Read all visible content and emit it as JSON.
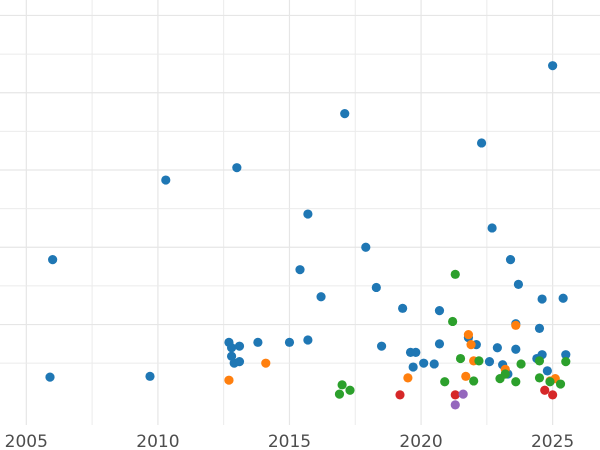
{
  "chart_data": {
    "type": "scatter",
    "title": "",
    "xlabel": "",
    "ylabel": "",
    "xlim": [
      2004.0,
      2026.8
    ],
    "ylim": [
      -0.3,
      5.2
    ],
    "grid": true,
    "legend": "none",
    "x_ticks": [
      {
        "value": 2005,
        "label": "2005"
      },
      {
        "value": 2010,
        "label": "2010"
      },
      {
        "value": 2015,
        "label": "2015"
      },
      {
        "value": 2020,
        "label": "2020"
      },
      {
        "value": 2025,
        "label": "2025"
      }
    ],
    "y_gridlines": [
      1,
      2,
      3,
      4,
      5
    ],
    "series": [
      {
        "color": "#1f77b4",
        "points": [
          [
            2006.0,
            1.84
          ],
          [
            2005.9,
            0.32
          ],
          [
            2009.7,
            0.33
          ],
          [
            2010.3,
            2.87
          ],
          [
            2012.7,
            0.77
          ],
          [
            2012.8,
            0.59
          ],
          [
            2012.8,
            0.7
          ],
          [
            2012.9,
            0.5
          ],
          [
            2013.1,
            0.52
          ],
          [
            2013.0,
            3.03
          ],
          [
            2013.1,
            0.72
          ],
          [
            2013.8,
            0.77
          ],
          [
            2015.0,
            0.77
          ],
          [
            2015.4,
            1.71
          ],
          [
            2015.7,
            0.8
          ],
          [
            2015.7,
            2.43
          ],
          [
            2016.2,
            1.36
          ],
          [
            2017.1,
            3.73
          ],
          [
            2017.9,
            2.0
          ],
          [
            2018.3,
            1.48
          ],
          [
            2018.5,
            0.72
          ],
          [
            2019.3,
            1.21
          ],
          [
            2019.6,
            0.64
          ],
          [
            2019.7,
            0.45
          ],
          [
            2019.8,
            0.64
          ],
          [
            2020.1,
            0.5
          ],
          [
            2020.5,
            0.49
          ],
          [
            2020.7,
            1.18
          ],
          [
            2020.7,
            0.75
          ],
          [
            2021.8,
            0.83
          ],
          [
            2022.1,
            0.74
          ],
          [
            2022.3,
            3.35
          ],
          [
            2022.6,
            0.52
          ],
          [
            2022.7,
            2.25
          ],
          [
            2022.9,
            0.7
          ],
          [
            2023.1,
            0.48
          ],
          [
            2023.3,
            0.36
          ],
          [
            2023.4,
            1.84
          ],
          [
            2023.6,
            1.01
          ],
          [
            2023.6,
            0.68
          ],
          [
            2023.7,
            1.52
          ],
          [
            2024.4,
            0.56
          ],
          [
            2024.5,
            0.95
          ],
          [
            2024.6,
            0.61
          ],
          [
            2024.6,
            1.33
          ],
          [
            2024.8,
            0.4
          ],
          [
            2025.0,
            4.35
          ],
          [
            2025.4,
            1.34
          ],
          [
            2025.5,
            0.61
          ]
        ]
      },
      {
        "color": "#ff7f0e",
        "points": [
          [
            2012.7,
            0.28
          ],
          [
            2014.1,
            0.5
          ],
          [
            2019.5,
            0.31
          ],
          [
            2021.7,
            0.33
          ],
          [
            2021.8,
            0.87
          ],
          [
            2021.9,
            0.74
          ],
          [
            2022.0,
            0.53
          ],
          [
            2023.2,
            0.42
          ],
          [
            2023.6,
            0.99
          ],
          [
            2024.9,
            0.27
          ],
          [
            2025.1,
            0.3
          ]
        ]
      },
      {
        "color": "#2ca02c",
        "points": [
          [
            2016.9,
            0.1
          ],
          [
            2017.0,
            0.22
          ],
          [
            2017.3,
            0.15
          ],
          [
            2020.9,
            0.26
          ],
          [
            2021.2,
            1.04
          ],
          [
            2021.3,
            1.65
          ],
          [
            2021.5,
            0.56
          ],
          [
            2022.0,
            0.27
          ],
          [
            2022.2,
            0.53
          ],
          [
            2023.0,
            0.3
          ],
          [
            2023.2,
            0.36
          ],
          [
            2023.6,
            0.26
          ],
          [
            2023.8,
            0.49
          ],
          [
            2024.5,
            0.53
          ],
          [
            2024.5,
            0.31
          ],
          [
            2024.9,
            0.26
          ],
          [
            2025.3,
            0.23
          ],
          [
            2025.5,
            0.52
          ]
        ]
      },
      {
        "color": "#d62728",
        "points": [
          [
            2019.2,
            0.09
          ],
          [
            2021.3,
            0.09
          ],
          [
            2024.7,
            0.15
          ],
          [
            2025.0,
            0.09
          ]
        ]
      },
      {
        "color": "#9467bd",
        "points": [
          [
            2021.3,
            -0.04
          ],
          [
            2021.6,
            0.1
          ]
        ]
      }
    ]
  }
}
